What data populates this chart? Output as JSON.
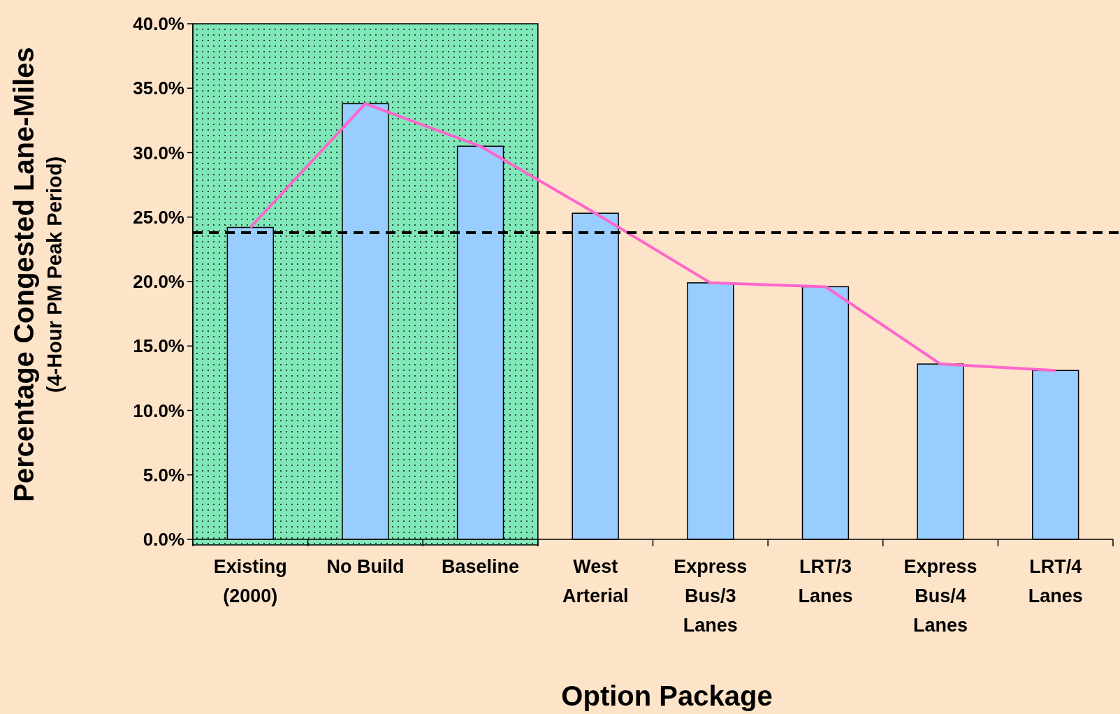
{
  "chart_data": {
    "type": "bar",
    "xlabel": "Option Package",
    "ylabel": "Percentage Congested Lane-Miles\n(4-Hour PM Peak Period)",
    "categories": [
      "Existing (2000)",
      "No Build",
      "Baseline",
      "West Arterial",
      "Express Bus/3 Lanes",
      "LRT/3 Lanes",
      "Express Bus/4 Lanes",
      "LRT/4 Lanes"
    ],
    "series": [
      {
        "color": "#99ccff",
        "values": [
          24.2,
          33.8,
          30.5,
          25.3,
          19.9,
          19.6,
          13.6,
          13.1
        ]
      },
      {
        "type": "line",
        "color": "#ff66cc",
        "values": [
          24.2,
          33.8,
          30.5,
          25.3,
          19.9,
          19.6,
          13.6,
          13.1
        ]
      }
    ],
    "ylim": [
      0,
      40
    ],
    "yticks": [
      {
        "value": 0,
        "label": "0.0%"
      },
      {
        "value": 5,
        "label": "5.0%"
      },
      {
        "value": 10,
        "label": "10.0%"
      },
      {
        "value": 15,
        "label": "15.0%"
      },
      {
        "value": 20,
        "label": "20.0%"
      },
      {
        "value": 25,
        "label": "25.0%"
      },
      {
        "value": 30,
        "label": "30.0%"
      },
      {
        "value": 35,
        "label": "35.0%"
      },
      {
        "value": 40,
        "label": "40.0%"
      }
    ],
    "ref_lines": [
      {
        "axis": "y",
        "value": 23.8,
        "color": "#000000",
        "line_style": "dashed"
      }
    ],
    "bands": [
      {
        "axis": "x",
        "from": "Existing (2000)",
        "to": "Baseline",
        "color": "#80e8b8"
      }
    ],
    "grid": false,
    "marker": "none"
  }
}
